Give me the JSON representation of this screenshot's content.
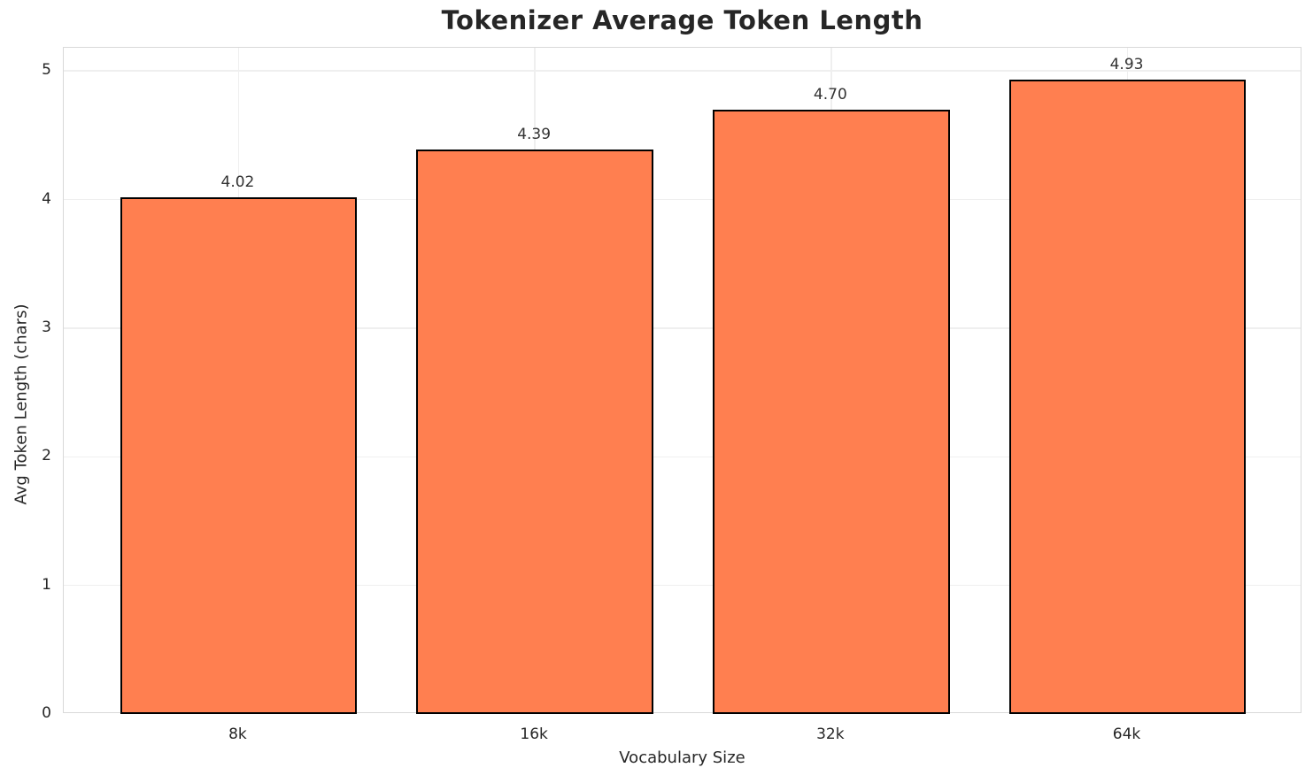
{
  "chart_data": {
    "type": "bar",
    "title": "Tokenizer Average Token Length",
    "xlabel": "Vocabulary Size",
    "ylabel": "Avg Token Length (chars)",
    "categories": [
      "8k",
      "16k",
      "32k",
      "64k"
    ],
    "values": [
      4.02,
      4.39,
      4.7,
      4.93
    ],
    "value_labels": [
      "4.02",
      "4.39",
      "4.70",
      "4.93"
    ],
    "yticks": [
      0,
      1,
      2,
      3,
      4,
      5
    ],
    "ylim": [
      0,
      5.18
    ],
    "grid": true,
    "legend_position": "none",
    "bar_width_fraction": 0.8,
    "x_margin_units": 0.59,
    "colors": {
      "bar_fill": "#ff7f50",
      "bar_edge": "#000000",
      "grid": "#efefef",
      "spine": "#d9d9d9",
      "text": "#262626",
      "background": "#ffffff"
    }
  }
}
